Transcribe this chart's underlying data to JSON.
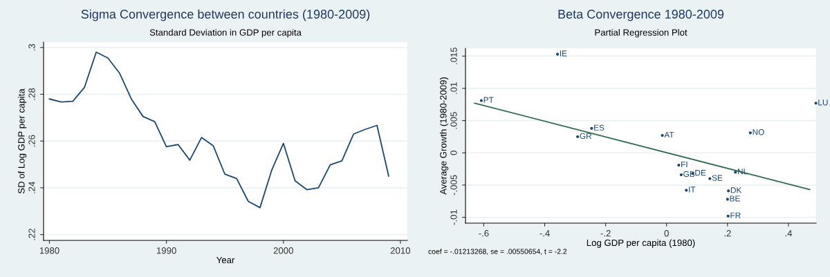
{
  "chart_data": [
    {
      "type": "line",
      "title": "Sigma Convergence between countries (1980-2009)",
      "subtitle": "Standard Deviation in GDP per capita",
      "xlabel": "Year",
      "ylabel": "SD of Log GDP per capita",
      "x": [
        1980,
        1981,
        1982,
        1983,
        1984,
        1985,
        1986,
        1987,
        1988,
        1989,
        1990,
        1991,
        1992,
        1993,
        1994,
        1995,
        1996,
        1997,
        1998,
        1999,
        2000,
        2001,
        2002,
        2003,
        2004,
        2005,
        2006,
        2007,
        2008,
        2009
      ],
      "series": [
        {
          "color": "#1a476f",
          "values": [
            0.278,
            0.2767,
            0.277,
            0.283,
            0.298,
            0.2955,
            0.289,
            0.278,
            0.2705,
            0.2683,
            0.2576,
            0.2585,
            0.2518,
            0.2615,
            0.258,
            0.2458,
            0.244,
            0.2342,
            0.2315,
            0.2475,
            0.259,
            0.243,
            0.2392,
            0.24,
            0.2498,
            0.2515,
            0.263,
            0.265,
            0.2667,
            0.245
          ]
        }
      ],
      "xlim": [
        1979.5,
        2010.6
      ],
      "xticks": [
        1980,
        1990,
        2000,
        2010
      ],
      "ylim": [
        0.2175,
        0.3023
      ],
      "yticks": [
        {
          "value": 0.22,
          "label": ".22"
        },
        {
          "value": 0.24,
          "label": ".24"
        },
        {
          "value": 0.26,
          "label": ".26"
        },
        {
          "value": 0.28,
          "label": ".28"
        },
        {
          "value": 0.3,
          "label": ".3"
        }
      ],
      "grid": "y",
      "legend": false,
      "marker": "none",
      "line_style": "solid"
    },
    {
      "type": "scatter",
      "title": "Beta Convergence 1980-2009",
      "subtitle": "Partial Regression Plot",
      "xlabel": "Log GDP per capita (1980)",
      "ylabel": "Average Growth (1980-2009)",
      "series": [
        {
          "type": "scatter",
          "color": "#1a476f",
          "marker": "circle",
          "x": [
            -0.358,
            -0.608,
            0.49,
            -0.246,
            -0.292,
            -0.014,
            0.275,
            0.04,
            0.048,
            0.086,
            0.142,
            0.226,
            0.065,
            0.203,
            0.2,
            0.202
          ],
          "values": [
            0.0153,
            0.0081,
            0.0077,
            0.0038,
            0.0025,
            0.0027,
            0.0031,
            -0.0019,
            -0.0034,
            -0.0032,
            -0.004,
            -0.003,
            -0.0058,
            -0.0059,
            -0.0072,
            -0.0098
          ],
          "value_labels": [
            "IE",
            "PT",
            "LU",
            "ES",
            "GR",
            "AT",
            "NO",
            "FI",
            "GB",
            "DE",
            "SE",
            "NL",
            "IT",
            "DK",
            "BE",
            "FR"
          ]
        },
        {
          "type": "line",
          "color": "#2e6b4f",
          "x": [
            -0.63,
            0.47
          ],
          "values": [
            0.0077,
            -0.0057
          ]
        }
      ],
      "xlim": [
        -0.66,
        0.491
      ],
      "xticks": [
        {
          "value": -0.6,
          "label": "-.6"
        },
        {
          "value": -0.4,
          "label": "-.4"
        },
        {
          "value": -0.2,
          "label": "-.2"
        },
        0,
        {
          "value": 0.2,
          "label": ".2"
        },
        {
          "value": 0.4,
          "label": ".4"
        }
      ],
      "ylim": [
        -0.0109,
        0.0162
      ],
      "yticks": [
        {
          "value": -0.01,
          "label": "-.01"
        },
        {
          "value": -0.005,
          "label": "-.005"
        },
        0,
        {
          "value": 0.005,
          "label": ".005"
        },
        {
          "value": 0.01,
          "label": ".01"
        },
        {
          "value": 0.015,
          "label": ".015"
        }
      ],
      "grid": "y",
      "legend": false,
      "annotations": [
        "coef = -.01213268, se = .00550654, t = -2.2"
      ]
    }
  ]
}
